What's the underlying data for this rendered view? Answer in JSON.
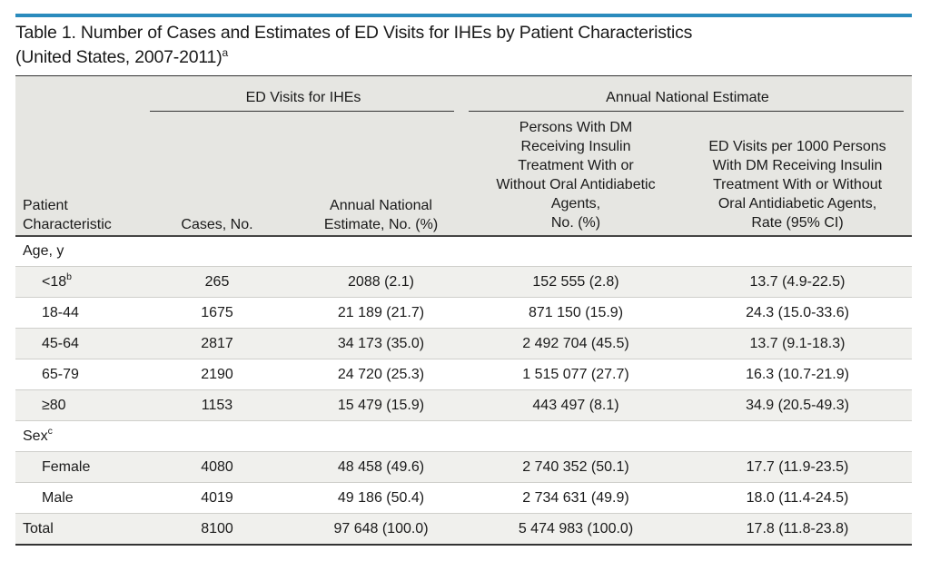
{
  "title": {
    "line1": "Table 1. Number of Cases and Estimates of ED Visits for IHEs by Patient Characteristics",
    "line2": "(United States, 2007-2011)",
    "sup": "a"
  },
  "header": {
    "group1": "ED Visits for IHEs",
    "group2": "Annual National Estimate",
    "col_characteristic": [
      "Patient",
      "Characteristic"
    ],
    "col_cases": "Cases, No.",
    "col_estimate": [
      "Annual National",
      "Estimate, No. (%)"
    ],
    "col_persons": [
      "Persons With DM",
      "Receiving Insulin",
      "Treatment With or",
      "Without Oral Antidiabetic",
      "Agents,",
      "No. (%)"
    ],
    "col_rate": [
      "ED Visits per 1000 Persons",
      "With DM Receiving Insulin",
      "Treatment With or Without",
      "Oral Antidiabetic Agents,",
      "Rate (95% CI)"
    ]
  },
  "rows": [
    {
      "label": "Age, y",
      "sup": "",
      "cases": "",
      "estimate": "",
      "persons": "",
      "rate": ""
    },
    {
      "label": "<18",
      "sup": "b",
      "cases": "265",
      "estimate": "2088 (2.1)",
      "persons": "152 555 (2.8)",
      "rate": "13.7 (4.9-22.5)"
    },
    {
      "label": "18-44",
      "sup": "",
      "cases": "1675",
      "estimate": "21 189 (21.7)",
      "persons": "871 150 (15.9)",
      "rate": "24.3 (15.0-33.6)"
    },
    {
      "label": "45-64",
      "sup": "",
      "cases": "2817",
      "estimate": "34 173 (35.0)",
      "persons": "2 492 704 (45.5)",
      "rate": "13.7 (9.1-18.3)"
    },
    {
      "label": "65-79",
      "sup": "",
      "cases": "2190",
      "estimate": "24 720 (25.3)",
      "persons": "1 515 077 (27.7)",
      "rate": "16.3 (10.7-21.9)"
    },
    {
      "label": "≥80",
      "sup": "",
      "cases": "1153",
      "estimate": "15 479 (15.9)",
      "persons": "443 497 (8.1)",
      "rate": "34.9 (20.5-49.3)"
    },
    {
      "label": "Sex",
      "sup": "c",
      "cases": "",
      "estimate": "",
      "persons": "",
      "rate": ""
    },
    {
      "label": "Female",
      "sup": "",
      "cases": "4080",
      "estimate": "48 458 (49.6)",
      "persons": "2 740 352 (50.1)",
      "rate": "17.7 (11.9-23.5)"
    },
    {
      "label": "Male",
      "sup": "",
      "cases": "4019",
      "estimate": "49 186 (50.4)",
      "persons": "2 734 631 (49.9)",
      "rate": "18.0 (11.4-24.5)"
    },
    {
      "label": "Total",
      "sup": "",
      "cases": "8100",
      "estimate": "97 648 (100.0)",
      "persons": "5 474 983 (100.0)",
      "rate": "17.8 (11.8-23.8)"
    }
  ],
  "colors": {
    "accent_rule": "#2a8bbd",
    "header_bg": "#e6e6e2",
    "row_shade": "#f0f0ed"
  }
}
